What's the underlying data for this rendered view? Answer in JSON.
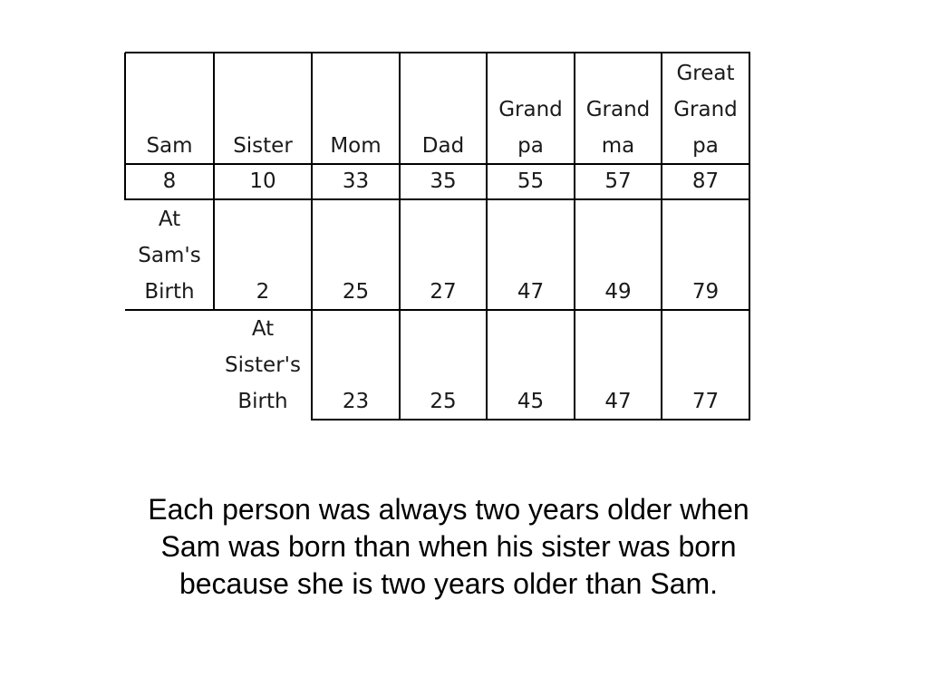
{
  "table": {
    "header_row": [
      [
        "Sam"
      ],
      [
        "Sister"
      ],
      [
        "Mom"
      ],
      [
        "Dad"
      ],
      [
        "Grand",
        "pa"
      ],
      [
        "Grand",
        "ma"
      ],
      [
        "Great",
        "Grand",
        "pa"
      ]
    ],
    "ages_row": [
      "8",
      "10",
      "33",
      "35",
      "55",
      "57",
      "87"
    ],
    "sam_birth_row": [
      [
        "At",
        "Sam's",
        "Birth"
      ],
      [
        "2"
      ],
      [
        "25"
      ],
      [
        "27"
      ],
      [
        "47"
      ],
      [
        "49"
      ],
      [
        "79"
      ]
    ],
    "sister_birth_row": [
      [
        "At",
        "Sister's",
        "Birth"
      ],
      [
        "23"
      ],
      [
        "25"
      ],
      [
        "45"
      ],
      [
        "47"
      ],
      [
        "77"
      ]
    ]
  },
  "caption": "Each person was always two years older when Sam was born than when his sister was born because she is two years older than Sam."
}
